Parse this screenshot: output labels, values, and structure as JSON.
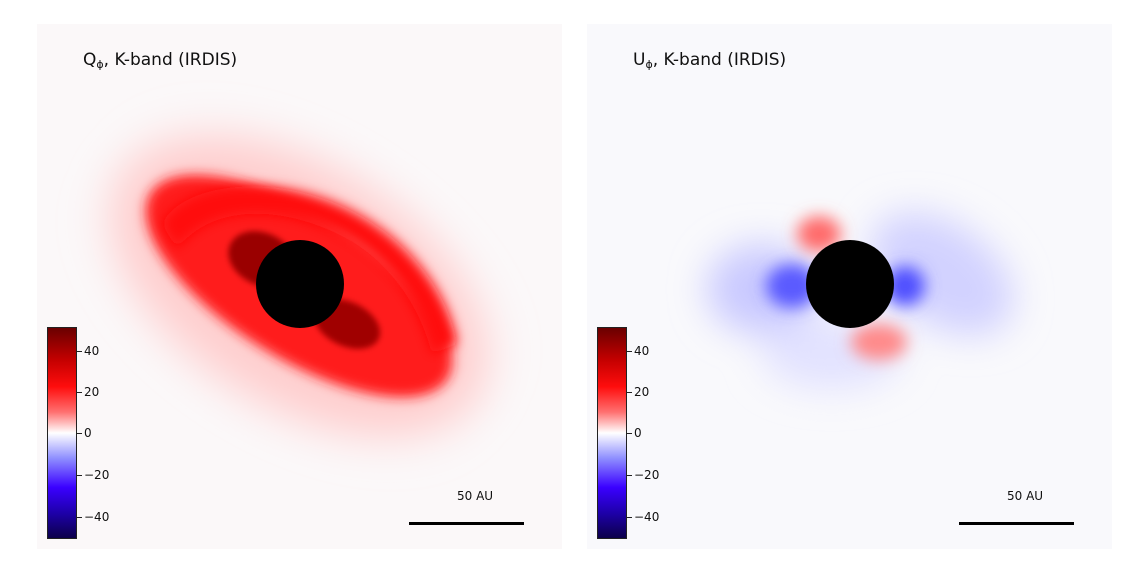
{
  "panels": [
    {
      "title_main": "Q",
      "title_sub": "ϕ",
      "title_rest": ", K-band (IRDIS)",
      "colorbar_ticks": [
        "40",
        "20",
        "0",
        "−20",
        "−40"
      ],
      "scale_label": "50 AU"
    },
    {
      "title_main": "U",
      "title_sub": "ϕ",
      "title_rest": ", K-band (IRDIS)",
      "colorbar_ticks": [
        "40",
        "20",
        "0",
        "−20",
        "−40"
      ],
      "scale_label": "50 AU"
    }
  ],
  "colorbar": {
    "range": [
      -50,
      50
    ],
    "colors": [
      "#0c004a",
      "#3a00ff",
      "#ffffff",
      "#ff0d0d",
      "#6a0000"
    ]
  }
}
